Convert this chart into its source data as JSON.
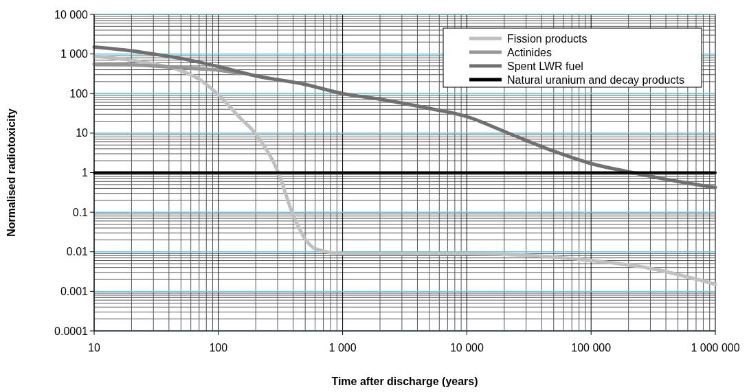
{
  "chart_data": {
    "type": "line",
    "xlabel": "Time after discharge (years)",
    "ylabel": "Normalised radiotoxicity",
    "log": "xy",
    "grid": true,
    "legend": "top right",
    "line_style": "solid",
    "xlim": [
      10,
      1000000
    ],
    "ylim": [
      0.0001,
      10000
    ],
    "xticks": [
      10,
      100,
      {
        "value": 1000,
        "label": "1 000"
      },
      {
        "value": 10000,
        "label": "10 000"
      },
      {
        "value": 100000,
        "label": "100 000"
      },
      {
        "value": 1000000,
        "label": "1 000 000"
      }
    ],
    "yticks": [
      0.0001,
      0.001,
      0.01,
      0.1,
      1,
      10,
      100,
      {
        "value": 1000,
        "label": "1 000"
      },
      {
        "value": 10000,
        "label": "10 000"
      }
    ],
    "series": [
      {
        "name": "Fission products",
        "color": "#c0c0c0",
        "x": [
          10,
          30,
          50,
          70,
          100,
          150,
          200,
          300,
          400,
          500,
          600,
          1000,
          10000,
          100000,
          300000,
          1000000
        ],
        "values": [
          870,
          560,
          380,
          230,
          93,
          24,
          9.5,
          1.1,
          0.085,
          0.021,
          0.012,
          0.009,
          0.009,
          0.006,
          0.0038,
          0.0015
        ]
      },
      {
        "name": "Actinides",
        "color": "#969696",
        "x": [
          10,
          20,
          30,
          50,
          70,
          100,
          150
        ],
        "values": [
          550,
          530,
          500,
          450,
          420,
          390,
          320
        ]
      },
      {
        "name": "Spent LWR fuel",
        "color": "#707070",
        "x": [
          10,
          20,
          30,
          50,
          100,
          200,
          500,
          1000,
          2000,
          5000,
          10000,
          20000,
          50000,
          100000,
          200000,
          500000,
          1000000
        ],
        "values": [
          1500,
          1200,
          1000,
          770,
          480,
          280,
          170,
          100,
          72,
          42,
          26,
          11,
          3.5,
          1.7,
          1.05,
          0.6,
          0.42
        ]
      },
      {
        "name": "Natural uranium and decay products",
        "color": "#000000",
        "x": [
          10,
          1000000
        ],
        "values": [
          1,
          1
        ]
      }
    ]
  }
}
